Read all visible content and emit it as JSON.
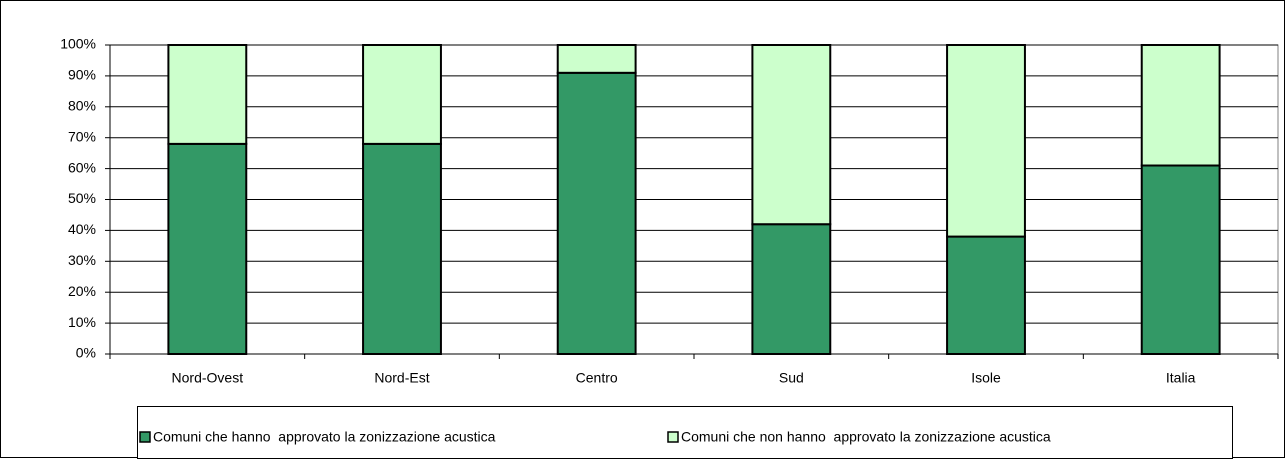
{
  "chart_data": {
    "type": "stacked_bar",
    "categories": [
      "Nord-Ovest",
      "Nord-Est",
      "Centro",
      "Sud",
      "Isole",
      "Italia"
    ],
    "series": [
      {
        "name": "Comuni che hanno  approvato la zonizzazione acustica",
        "color": "#339966",
        "values": [
          68,
          68,
          91,
          42,
          38,
          61
        ]
      },
      {
        "name": "Comuni che non hanno  approvato la zonizzazione acustica",
        "color": "#ccffcc",
        "values": [
          32,
          32,
          9,
          58,
          62,
          39
        ]
      }
    ],
    "ylim": [
      0,
      100
    ],
    "yticks": [
      {
        "value": 0,
        "label": "0%"
      },
      {
        "value": 10,
        "label": "10%"
      },
      {
        "value": 20,
        "label": "20%"
      },
      {
        "value": 30,
        "label": "30%"
      },
      {
        "value": 40,
        "label": "40%"
      },
      {
        "value": 50,
        "label": "50%"
      },
      {
        "value": 60,
        "label": "60%"
      },
      {
        "value": 70,
        "label": "70%"
      },
      {
        "value": 80,
        "label": "80%"
      },
      {
        "value": 90,
        "label": "90%"
      },
      {
        "value": 100,
        "label": "100%"
      }
    ],
    "grid": true,
    "legend": "bottom"
  }
}
